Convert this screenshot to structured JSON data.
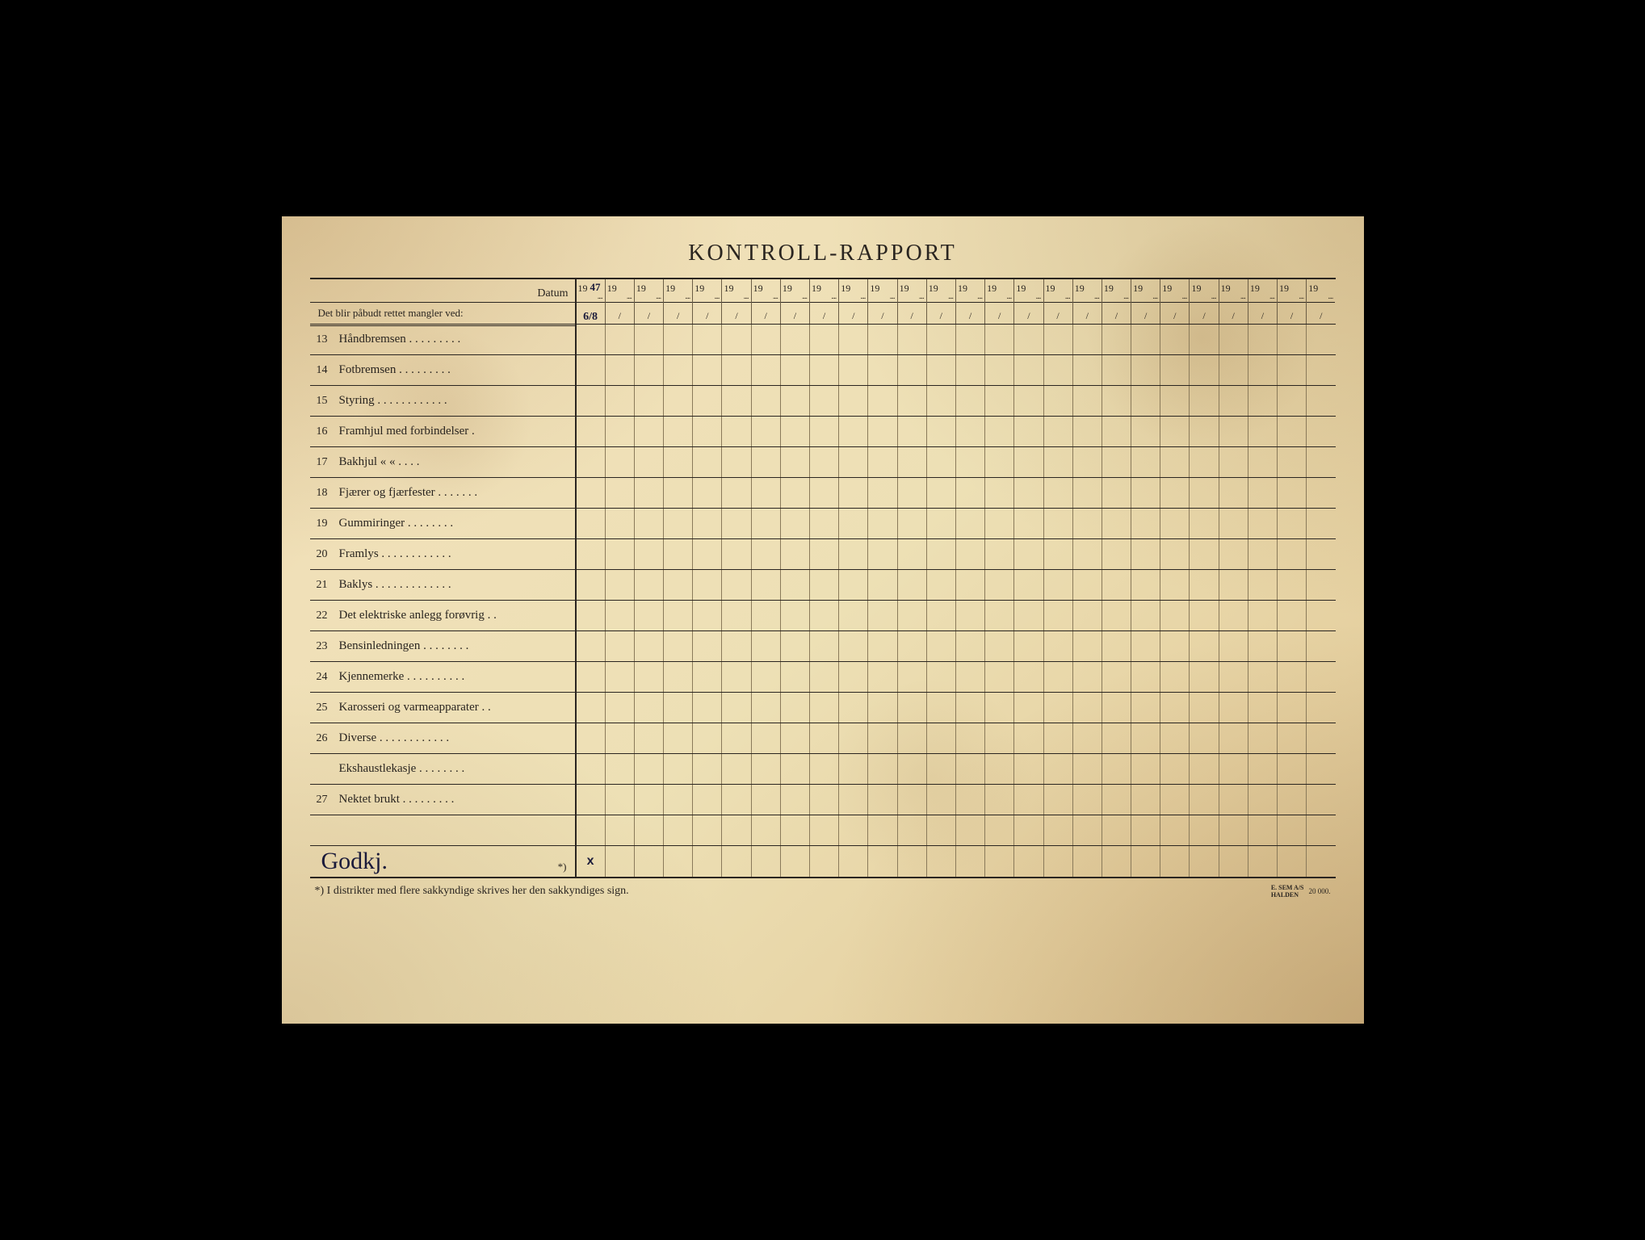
{
  "colors": {
    "paper_base": "#ede0b5",
    "paper_dark": "#d8c090",
    "ink": "#2a2520",
    "handwriting": "#1a1a3a",
    "grid_light": "#8a7a5a"
  },
  "title": "KONTROLL-RAPPORT",
  "header": {
    "datum_label": "Datum",
    "det_blir_label": "Det blir påbudt rettet mangler ved:",
    "year_prefix": "19",
    "date_sep": "/",
    "col_count": 26,
    "col0_year_hand": "47",
    "col0_date_hand": "6/8"
  },
  "rows": [
    {
      "num": "13",
      "label": "Håndbremsen . . . . . . . . ."
    },
    {
      "num": "14",
      "label": "Fotbremsen    . . . .     . . . . ."
    },
    {
      "num": "15",
      "label": "Styring   . . . . . . . . . . . ."
    },
    {
      "num": "16",
      "label": "Framhjul  med  forbindelser    ."
    },
    {
      "num": "17",
      "label": "Bakhjul        «         «        . . . ."
    },
    {
      "num": "18",
      "label": "Fjærer og fjærfester . . . . . . ."
    },
    {
      "num": "19",
      "label": "Gummiringer .     . . . . . . ."
    },
    {
      "num": "20",
      "label": "Framlys . . . . . . . . . . . ."
    },
    {
      "num": "21",
      "label": "Baklys . . . . . . . . . . . . ."
    },
    {
      "num": "22",
      "label": "Det elektriske anlegg forøvrig   . ."
    },
    {
      "num": "23",
      "label": "Bensinledningen   . . . . . . . ."
    },
    {
      "num": "24",
      "label": "Kjennemerke . . . . . . . . . ."
    },
    {
      "num": "25",
      "label": "Karosseri og varmeapparater  . ."
    },
    {
      "num": "26",
      "label": "Diverse   . . . . . . . . . . . ."
    },
    {
      "num": "",
      "label": "Ekshaustlekasje .   . . . . .   . ."
    },
    {
      "num": "27",
      "label": "Nektet brukt . . . .    . . . . ."
    }
  ],
  "blank_row": {
    "num": "",
    "label": ""
  },
  "sign_row": {
    "handwritten": "Godkj.",
    "asterisk": "*)",
    "cell0_mark": "x"
  },
  "footer": {
    "note": "*)   I distrikter med flere sakkyndige skrives her den sakkyndiges sign.",
    "maker_lines": "E. SEM A/S\nHALDEN",
    "print_run": "20 000."
  }
}
